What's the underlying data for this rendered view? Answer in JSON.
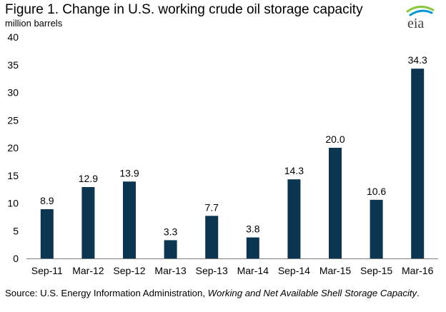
{
  "header": {
    "title": "Figure 1. Change in U.S. working crude oil storage capacity",
    "units": "million barrels",
    "logo_text": "eia"
  },
  "footer": {
    "source_prefix": "Source: U.S. Energy Information Administration, ",
    "source_title": "Working and Net Available Shell Storage Capacity",
    "source_suffix": "."
  },
  "colors": {
    "bar": "#0b3550",
    "axis": "#7f7f7f",
    "gridline": "#d9d9d9",
    "logo_arc_light": "#8dc63f",
    "logo_arc_dark": "#0096d6"
  },
  "chart_data": {
    "type": "bar",
    "title": "Figure 1. Change in U.S. working crude oil storage capacity",
    "ylabel": "million barrels",
    "xlabel": "",
    "categories": [
      "Sep-11",
      "Mar-12",
      "Sep-12",
      "Mar-13",
      "Sep-13",
      "Mar-14",
      "Sep-14",
      "Mar-15",
      "Sep-15",
      "Mar-16"
    ],
    "values": [
      8.9,
      12.9,
      13.9,
      3.3,
      7.7,
      3.8,
      14.3,
      20.0,
      10.6,
      34.3
    ],
    "value_labels": [
      "8.9",
      "12.9",
      "13.9",
      "3.3",
      "7.7",
      "3.8",
      "14.3",
      "20.0",
      "10.6",
      "34.3"
    ],
    "ylim": [
      0,
      40
    ],
    "yticks": [
      0,
      5,
      10,
      15,
      20,
      25,
      30,
      35,
      40
    ],
    "grid": false,
    "legend": "none"
  }
}
